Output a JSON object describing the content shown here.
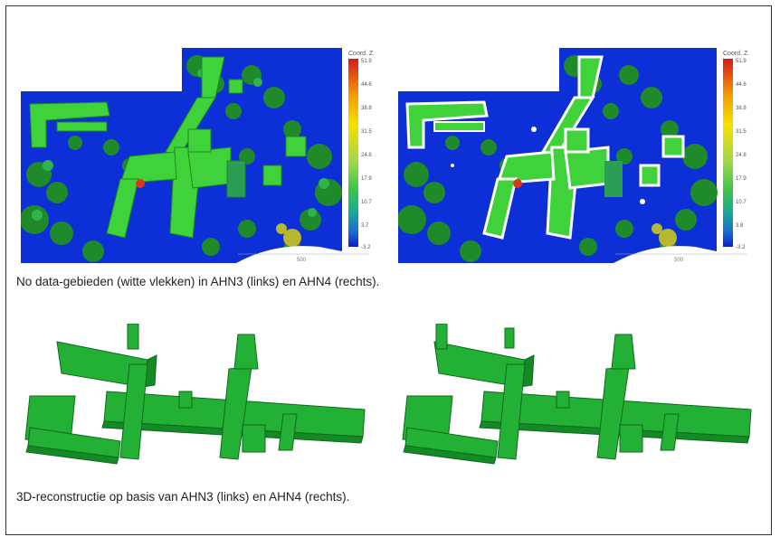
{
  "figure1": {
    "caption": "No data-gebieden (witte vlekken) in AHN3 (links) en AHN4 (rechts).",
    "left_panel": {
      "legend_title": "Coord. Z",
      "legend_ticks": [
        "51.9",
        "44.6",
        "38.8",
        "31.5",
        "24.8",
        "17.9",
        "10.7",
        "3.7",
        "-3.2"
      ],
      "scale_label": "500"
    },
    "right_panel": {
      "legend_title": "Coord. Z",
      "legend_ticks": [
        "51.9",
        "44.6",
        "38.8",
        "31.5",
        "24.8",
        "17.9",
        "10.7",
        "3.8",
        "-3.2"
      ],
      "scale_label": "500"
    },
    "colormap": [
      "#d7191c",
      "#f4a000",
      "#f7e000",
      "#9ed84a",
      "#3cc24a",
      "#1aa89a",
      "#1e6ad0",
      "#0a20c8"
    ]
  },
  "figure2": {
    "caption": "3D-reconstructie op basis van AHN3 (links) en AHN4 (rechts).",
    "building_color": "#22a835"
  }
}
